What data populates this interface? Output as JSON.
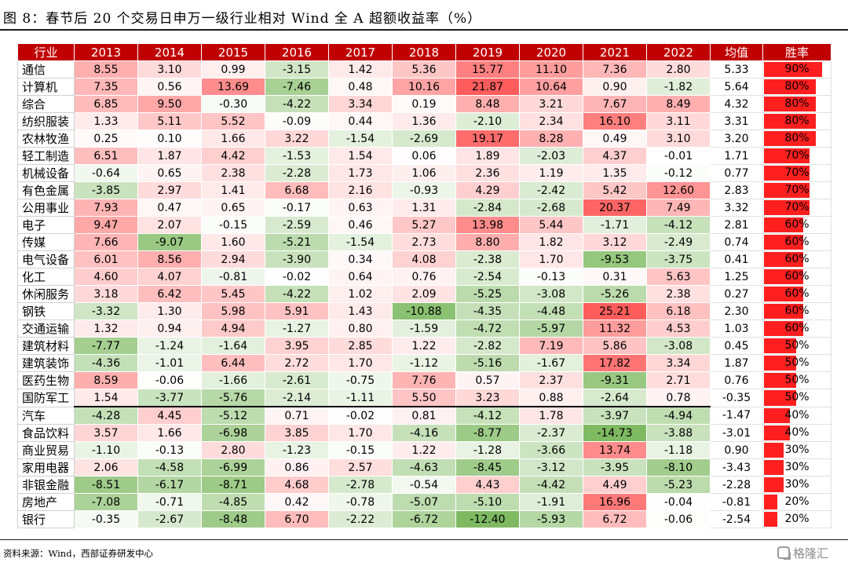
{
  "title": "图 8：春节后 20 个交易日申万一级行业相对 Wind 全 A 超额收益率（%）",
  "source": "资料来源：Wind，西部证券研发中心",
  "watermark": "格隆汇",
  "colors": {
    "header": "#c00000",
    "positive": "#f06060",
    "negative": "#79b85c",
    "bar": "#ff1f1f"
  },
  "table": {
    "headers": [
      "行业",
      "2013",
      "2014",
      "2015",
      "2016",
      "2017",
      "2018",
      "2019",
      "2020",
      "2021",
      "2022",
      "均值",
      "胜率"
    ],
    "rows": [
      {
        "name": "通信",
        "values": [
          "8.55",
          "3.10",
          "0.99",
          "-3.15",
          "1.42",
          "5.36",
          "15.77",
          "11.10",
          "7.36",
          "2.80"
        ],
        "avg": "5.33",
        "rate": "90%"
      },
      {
        "name": "计算机",
        "values": [
          "7.35",
          "0.56",
          "13.69",
          "-7.46",
          "0.48",
          "10.16",
          "21.87",
          "10.64",
          "0.90",
          "-1.82"
        ],
        "avg": "5.64",
        "rate": "80%"
      },
      {
        "name": "综合",
        "values": [
          "6.85",
          "9.50",
          "-0.30",
          "-4.22",
          "3.34",
          "0.19",
          "8.48",
          "3.21",
          "7.67",
          "8.49"
        ],
        "avg": "4.32",
        "rate": "80%"
      },
      {
        "name": "纺织服装",
        "values": [
          "1.33",
          "5.11",
          "5.52",
          "-0.09",
          "0.44",
          "1.36",
          "-2.10",
          "2.34",
          "16.10",
          "3.11"
        ],
        "avg": "3.31",
        "rate": "80%"
      },
      {
        "name": "农林牧渔",
        "values": [
          "0.25",
          "0.10",
          "1.66",
          "3.22",
          "-1.54",
          "-2.69",
          "19.17",
          "8.28",
          "0.49",
          "3.10"
        ],
        "avg": "3.20",
        "rate": "80%"
      },
      {
        "name": "轻工制造",
        "values": [
          "6.51",
          "1.87",
          "4.42",
          "-1.53",
          "1.54",
          "0.06",
          "1.89",
          "-2.03",
          "4.37",
          "-0.01"
        ],
        "avg": "1.71",
        "rate": "70%"
      },
      {
        "name": "机械设备",
        "values": [
          "-0.64",
          "0.65",
          "2.38",
          "-2.28",
          "1.73",
          "1.06",
          "2.36",
          "1.19",
          "1.35",
          "-0.12"
        ],
        "avg": "0.77",
        "rate": "70%"
      },
      {
        "name": "有色金属",
        "values": [
          "-3.85",
          "2.97",
          "1.41",
          "6.68",
          "2.16",
          "-0.93",
          "4.29",
          "-2.42",
          "5.42",
          "12.60"
        ],
        "avg": "2.83",
        "rate": "70%"
      },
      {
        "name": "公用事业",
        "values": [
          "7.93",
          "0.47",
          "0.65",
          "-0.17",
          "0.63",
          "1.31",
          "-2.84",
          "-2.68",
          "20.37",
          "7.49"
        ],
        "avg": "3.32",
        "rate": "70%"
      },
      {
        "name": "电子",
        "values": [
          "9.47",
          "2.07",
          "-0.15",
          "-2.59",
          "0.46",
          "5.27",
          "13.98",
          "5.44",
          "-1.71",
          "-4.12"
        ],
        "avg": "2.81",
        "rate": "60%"
      },
      {
        "name": "传媒",
        "values": [
          "7.66",
          "-9.07",
          "1.60",
          "-5.21",
          "-1.54",
          "2.73",
          "8.80",
          "1.82",
          "3.12",
          "-2.49"
        ],
        "avg": "0.74",
        "rate": "60%"
      },
      {
        "name": "电气设备",
        "values": [
          "6.01",
          "8.56",
          "2.94",
          "-3.90",
          "0.34",
          "4.08",
          "-2.38",
          "1.70",
          "-9.53",
          "-3.75"
        ],
        "avg": "0.41",
        "rate": "60%"
      },
      {
        "name": "化工",
        "values": [
          "4.60",
          "4.07",
          "-0.81",
          "-0.02",
          "0.64",
          "0.76",
          "-2.54",
          "-0.13",
          "0.31",
          "5.63"
        ],
        "avg": "1.25",
        "rate": "60%"
      },
      {
        "name": "休闲服务",
        "values": [
          "3.18",
          "6.42",
          "5.45",
          "-4.22",
          "1.02",
          "2.09",
          "-5.25",
          "-3.08",
          "-5.26",
          "2.38"
        ],
        "avg": "0.27",
        "rate": "60%"
      },
      {
        "name": "钢铁",
        "values": [
          "-3.32",
          "1.30",
          "5.98",
          "5.91",
          "1.43",
          "-10.88",
          "-4.35",
          "-4.48",
          "25.21",
          "6.18"
        ],
        "avg": "2.30",
        "rate": "60%"
      },
      {
        "name": "交通运输",
        "values": [
          "1.32",
          "0.94",
          "4.94",
          "-1.27",
          "0.80",
          "-1.59",
          "-4.72",
          "-5.97",
          "11.32",
          "4.53"
        ],
        "avg": "1.03",
        "rate": "60%"
      },
      {
        "name": "建筑材料",
        "values": [
          "-7.77",
          "-1.24",
          "-1.64",
          "3.95",
          "2.85",
          "1.22",
          "-2.82",
          "7.19",
          "5.86",
          "-3.08"
        ],
        "avg": "0.45",
        "rate": "50%"
      },
      {
        "name": "建筑装饰",
        "values": [
          "-4.36",
          "-1.01",
          "6.44",
          "2.72",
          "1.70",
          "-1.12",
          "-5.16",
          "-1.67",
          "17.82",
          "3.34"
        ],
        "avg": "1.87",
        "rate": "50%"
      },
      {
        "name": "医药生物",
        "values": [
          "8.59",
          "-0.06",
          "-1.66",
          "-2.61",
          "-0.75",
          "7.76",
          "0.57",
          "2.37",
          "-9.31",
          "2.71"
        ],
        "avg": "0.76",
        "rate": "50%"
      },
      {
        "name": "国防军工",
        "values": [
          "1.54",
          "-3.77",
          "-5.76",
          "-2.14",
          "-1.11",
          "5.50",
          "3.23",
          "0.88",
          "-2.64",
          "0.78"
        ],
        "avg": "-0.35",
        "rate": "50%"
      },
      {
        "name": "汽车",
        "values": [
          "-4.28",
          "4.45",
          "-5.12",
          "0.71",
          "-0.02",
          "0.81",
          "-4.12",
          "1.78",
          "-3.97",
          "-4.94"
        ],
        "avg": "-1.47",
        "rate": "40%"
      },
      {
        "name": "食品饮料",
        "values": [
          "3.57",
          "1.66",
          "-6.98",
          "3.85",
          "1.70",
          "-4.16",
          "-8.77",
          "-2.37",
          "-14.73",
          "-3.88"
        ],
        "avg": "-3.01",
        "rate": "40%"
      },
      {
        "name": "商业贸易",
        "values": [
          "-1.10",
          "-0.13",
          "2.80",
          "-1.23",
          "-0.15",
          "1.22",
          "-1.28",
          "-3.66",
          "13.74",
          "-1.18"
        ],
        "avg": "0.90",
        "rate": "30%"
      },
      {
        "name": "家用电器",
        "values": [
          "2.06",
          "-4.58",
          "-6.99",
          "0.86",
          "2.57",
          "-4.63",
          "-8.45",
          "-3.12",
          "-3.95",
          "-8.10"
        ],
        "avg": "-3.43",
        "rate": "30%"
      },
      {
        "name": "非银金融",
        "values": [
          "-8.51",
          "-6.17",
          "-8.71",
          "4.68",
          "-2.78",
          "-0.54",
          "4.43",
          "-4.42",
          "4.49",
          "-5.23"
        ],
        "avg": "-2.28",
        "rate": "30%"
      },
      {
        "name": "房地产",
        "values": [
          "-7.08",
          "-0.71",
          "-4.85",
          "0.42",
          "-0.78",
          "-5.07",
          "-5.10",
          "-1.91",
          "16.96",
          "-0.04"
        ],
        "avg": "-0.81",
        "rate": "20%"
      },
      {
        "name": "银行",
        "values": [
          "-0.35",
          "-2.67",
          "-8.48",
          "6.70",
          "-2.22",
          "-6.72",
          "-12.40",
          "-5.93",
          "6.72",
          "-0.06"
        ],
        "avg": "-2.54",
        "rate": "20%"
      }
    ]
  }
}
